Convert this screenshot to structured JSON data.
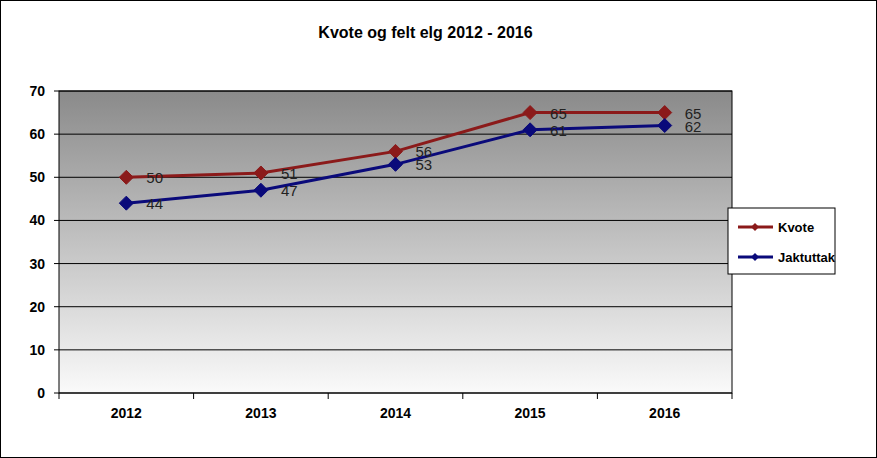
{
  "chart_data": {
    "type": "line",
    "title": "Kvote og felt elg 2012 - 2016",
    "categories": [
      "2012",
      "2013",
      "2014",
      "2015",
      "2016"
    ],
    "series": [
      {
        "name": "Kvote",
        "color": "#8b1a1a",
        "marker": "diamond",
        "values": [
          50,
          51,
          56,
          65,
          65
        ]
      },
      {
        "name": "Jaktuttak",
        "color": "#0a0a7a",
        "marker": "diamond",
        "values": [
          44,
          47,
          53,
          61,
          62
        ]
      }
    ],
    "ylim": [
      0,
      70
    ],
    "yticks": [
      0,
      10,
      20,
      30,
      40,
      50,
      60,
      70
    ],
    "grid": true,
    "legend": "right",
    "data_labels": true
  }
}
